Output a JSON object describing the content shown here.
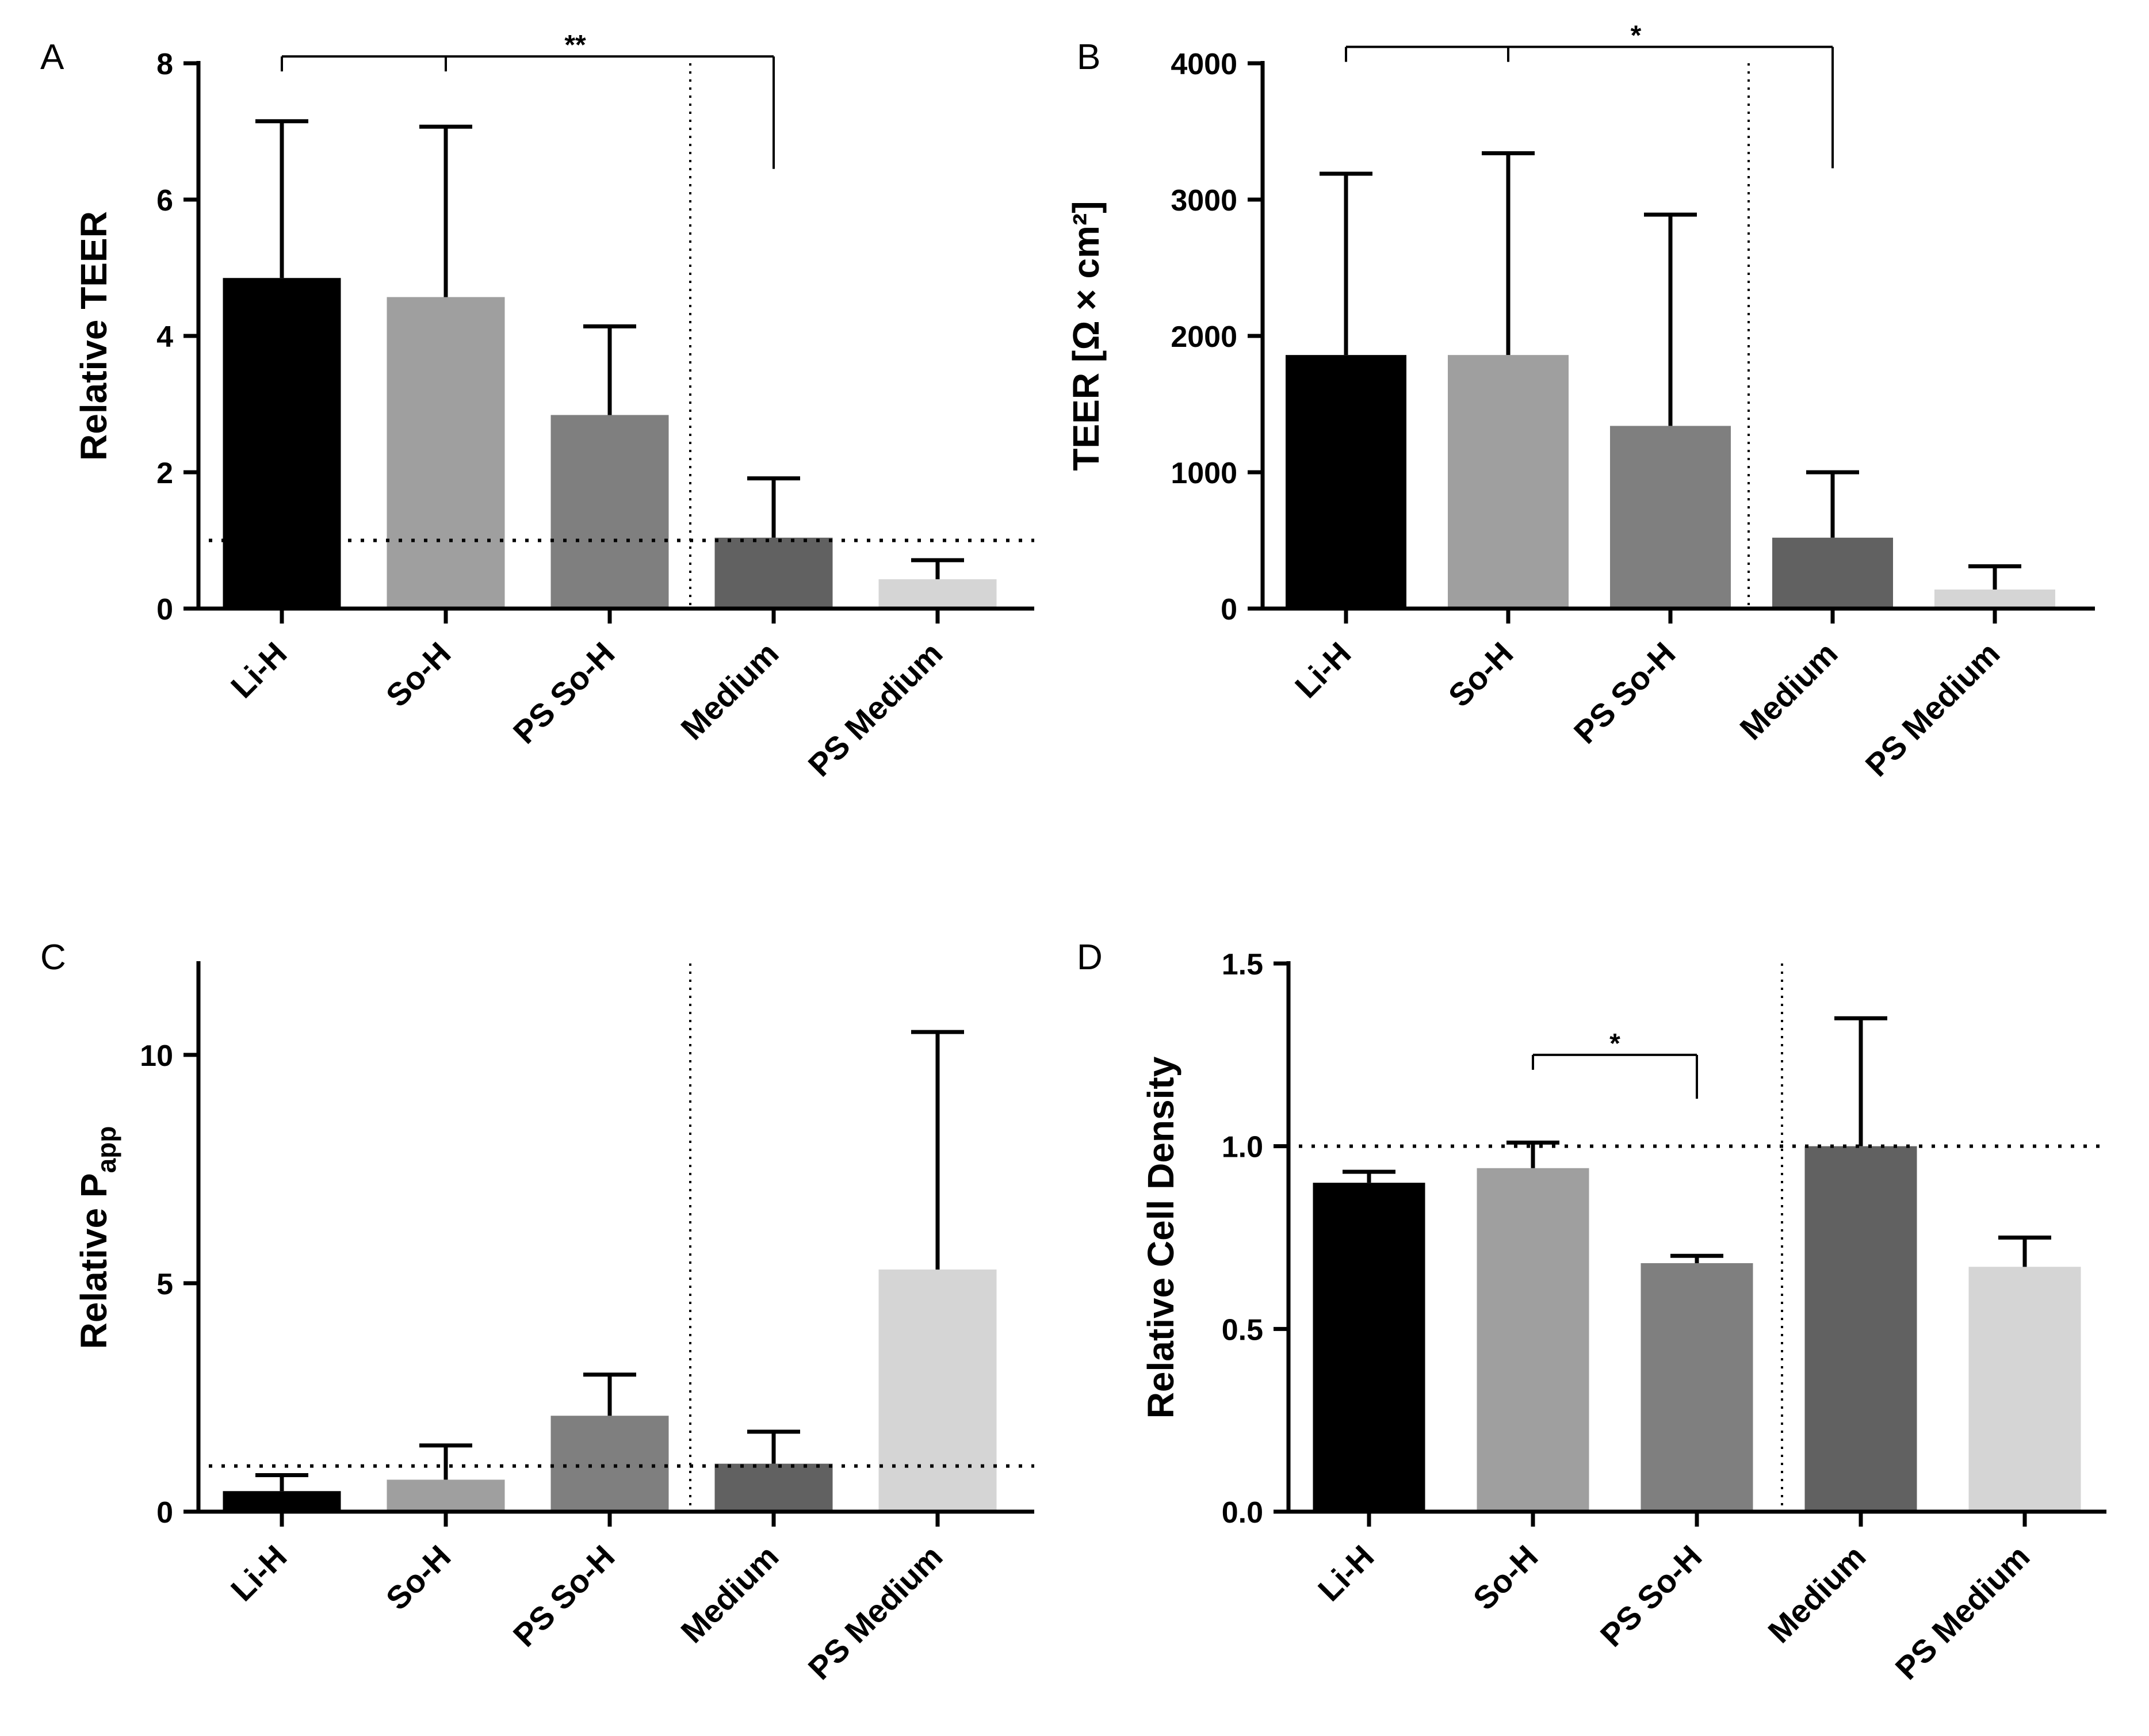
{
  "figure_title": "",
  "chart_data": [
    {
      "panel": "A",
      "type": "bar",
      "title": "",
      "xlabel": "",
      "ylabel": "Relative  TEER",
      "ylim": [
        0,
        8
      ],
      "yticks": [
        0,
        2,
        4,
        6,
        8
      ],
      "ytick_labels": [
        "0",
        "2",
        "4",
        "6",
        "8"
      ],
      "categories": [
        "Li-H",
        "So-H",
        "PS So-H",
        "Medium",
        "PS Medium"
      ],
      "values": [
        4.85,
        4.57,
        2.84,
        1.04,
        0.43
      ],
      "errors": [
        2.3,
        2.5,
        1.3,
        0.87,
        0.28
      ],
      "bar_colors": [
        "#000000",
        "#9f9f9f",
        "#7f7f7f",
        "#616161",
        "#d5d5d5"
      ],
      "reference_line": 1.0,
      "separator_after_index": 2,
      "significance": [
        {
          "label": "**",
          "left_from": 0,
          "left_to": 1,
          "right": 3,
          "y": 8.1,
          "right_drop_to": 6.45
        }
      ]
    },
    {
      "panel": "B",
      "type": "bar",
      "title": "",
      "xlabel": "",
      "ylabel": "TEER [Ω × cm²]",
      "ylim": [
        0,
        4000
      ],
      "yticks": [
        0,
        1000,
        2000,
        3000,
        4000
      ],
      "ytick_labels": [
        "0",
        "1000",
        "2000",
        "3000",
        "4000"
      ],
      "categories": [
        "Li-H",
        "So-H",
        "PS So-H",
        "Medium",
        "PS Medium"
      ],
      "values": [
        1860,
        1860,
        1340,
        520,
        140
      ],
      "errors": [
        1330,
        1480,
        1550,
        480,
        170
      ],
      "bar_colors": [
        "#000000",
        "#9f9f9f",
        "#7f7f7f",
        "#616161",
        "#d5d5d5"
      ],
      "reference_line": null,
      "separator_after_index": 2,
      "significance": [
        {
          "label": "*",
          "left_from": 0,
          "left_to": 1,
          "right": 3,
          "y": 4120,
          "right_drop_to": 3230
        }
      ]
    },
    {
      "panel": "C",
      "type": "bar",
      "title": "",
      "xlabel": "",
      "ylabel": "Relative P",
      "ylabel_subscript": "app",
      "ylim": [
        0,
        12
      ],
      "yticks": [
        0,
        5,
        10
      ],
      "ytick_labels": [
        "0",
        "5",
        "10"
      ],
      "categories": [
        "Li-H",
        "So-H",
        "PS So-H",
        "Medium",
        "PS Medium"
      ],
      "values": [
        0.45,
        0.7,
        2.1,
        1.05,
        5.3
      ],
      "errors": [
        0.35,
        0.75,
        0.9,
        0.7,
        5.2
      ],
      "bar_colors": [
        "#000000",
        "#9f9f9f",
        "#7f7f7f",
        "#616161",
        "#d5d5d5"
      ],
      "reference_line": 1.0,
      "separator_after_index": 2,
      "significance": []
    },
    {
      "panel": "D",
      "type": "bar",
      "title": "",
      "xlabel": "",
      "ylabel": "Relative Cell Density",
      "ylim": [
        0,
        1.5
      ],
      "yticks": [
        0.0,
        0.5,
        1.0,
        1.5
      ],
      "ytick_labels": [
        "0.0",
        "0.5",
        "1.0",
        "1.5"
      ],
      "categories": [
        "Li-H",
        "So-H",
        "PS So-H",
        "Medium",
        "PS Medium"
      ],
      "values": [
        0.9,
        0.94,
        0.68,
        1.0,
        0.67
      ],
      "errors": [
        0.03,
        0.07,
        0.02,
        0.35,
        0.08
      ],
      "bar_colors": [
        "#000000",
        "#9f9f9f",
        "#7f7f7f",
        "#616161",
        "#d5d5d5"
      ],
      "reference_line": 1.0,
      "separator_after_index": 2,
      "significance": [
        {
          "label": "*",
          "left_from": 1,
          "left_to": 1,
          "right": 2,
          "y": 1.25,
          "right_drop_to": 1.13
        }
      ]
    }
  ]
}
